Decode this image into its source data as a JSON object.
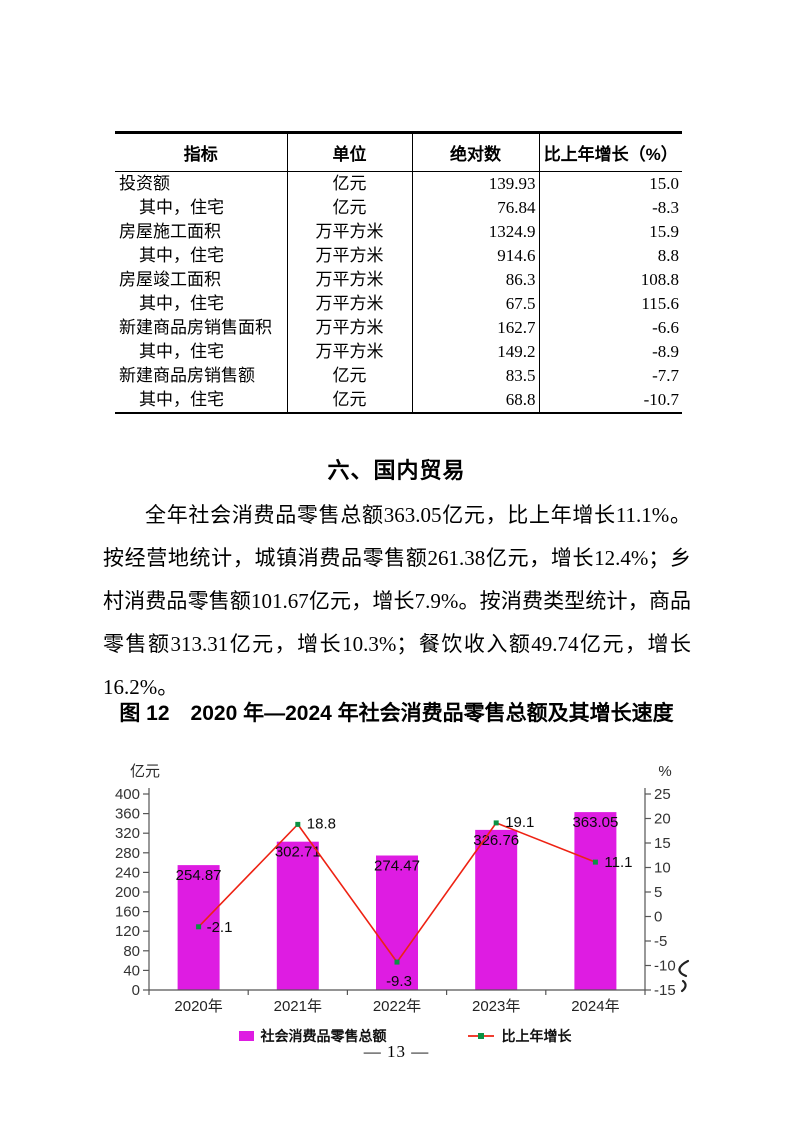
{
  "page": {
    "number_label": "— 13 —"
  },
  "table": {
    "headers": [
      "指标",
      "单位",
      "绝对数",
      "比上年增长（%）"
    ],
    "rows": [
      {
        "indicator": "投资额",
        "unit": "亿元",
        "value": "139.93",
        "growth": "15.0",
        "indent": false
      },
      {
        "indicator": "其中，住宅",
        "unit": "亿元",
        "value": "76.84",
        "growth": "-8.3",
        "indent": true
      },
      {
        "indicator": "房屋施工面积",
        "unit": "万平方米",
        "value": "1324.9",
        "growth": "15.9",
        "indent": false
      },
      {
        "indicator": "其中，住宅",
        "unit": "万平方米",
        "value": "914.6",
        "growth": "8.8",
        "indent": true
      },
      {
        "indicator": "房屋竣工面积",
        "unit": "万平方米",
        "value": "86.3",
        "growth": "108.8",
        "indent": false
      },
      {
        "indicator": "其中，住宅",
        "unit": "万平方米",
        "value": "67.5",
        "growth": "115.6",
        "indent": true
      },
      {
        "indicator": "新建商品房销售面积",
        "unit": "万平方米",
        "value": "162.7",
        "growth": "-6.6",
        "indent": false
      },
      {
        "indicator": "其中，住宅",
        "unit": "万平方米",
        "value": "149.2",
        "growth": "-8.9",
        "indent": true
      },
      {
        "indicator": "新建商品房销售额",
        "unit": "亿元",
        "value": "83.5",
        "growth": "-7.7",
        "indent": false
      },
      {
        "indicator": "其中，住宅",
        "unit": "亿元",
        "value": "68.8",
        "growth": "-10.7",
        "indent": true
      }
    ]
  },
  "section": {
    "heading": "六、国内贸易",
    "paragraph": "全年社会消费品零售总额363.05亿元，比上年增长11.1%。按经营地统计，城镇消费品零售额261.38亿元，增长12.4%；乡村消费品零售额101.67亿元，增长7.9%。按消费类型统计，商品零售额313.31亿元，增长10.3%；餐饮收入额49.74亿元，增长16.2%。"
  },
  "figure": {
    "caption": "图 12　2020 年—2024 年社会消费品零售总额及其增长速度"
  },
  "chart_data": {
    "type": "bar+line",
    "categories": [
      "2020年",
      "2021年",
      "2022年",
      "2023年",
      "2024年"
    ],
    "series": [
      {
        "name": "社会消费品零售总额",
        "type": "bar",
        "axis": "left",
        "unit": "亿元",
        "values": [
          254.87,
          302.71,
          274.47,
          326.76,
          363.05
        ],
        "color": "#de1ce2"
      },
      {
        "name": "比上年增长",
        "type": "line",
        "axis": "right",
        "unit": "%",
        "values": [
          -2.1,
          18.8,
          -9.3,
          19.1,
          11.1
        ],
        "line_color": "#ee2213",
        "marker_color": "#0c9143"
      }
    ],
    "left_axis": {
      "label": "亿元",
      "min": 0,
      "max": 400,
      "step": 40
    },
    "right_axis": {
      "label": "%",
      "min": -15,
      "max": 25,
      "step": 5
    },
    "grid": false,
    "legend_position": "bottom"
  }
}
